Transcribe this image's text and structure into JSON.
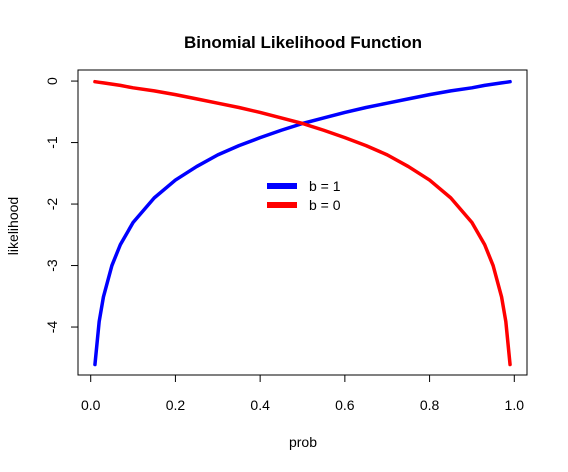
{
  "chart_data": {
    "type": "line",
    "title": "Binomial Likelihood Function",
    "xlabel": "prob",
    "ylabel": "likelihood",
    "xlim": [
      -0.03,
      1.03
    ],
    "ylim": [
      -4.78,
      0.18
    ],
    "x_ticks": [
      0,
      0.2,
      0.4,
      0.6,
      0.8,
      1
    ],
    "x_tick_labels": [
      "0.0",
      "0.2",
      "0.4",
      "0.6",
      "0.8",
      "1.0"
    ],
    "y_ticks": [
      0,
      -1,
      -2,
      -3,
      -4
    ],
    "y_tick_labels": [
      "0",
      "-1",
      "-2",
      "-3",
      "-4"
    ],
    "grid": false,
    "legend_position": "center",
    "x": [
      0.01,
      0.02,
      0.03,
      0.05,
      0.07,
      0.1,
      0.15,
      0.2,
      0.25,
      0.3,
      0.35,
      0.4,
      0.45,
      0.5,
      0.55,
      0.6,
      0.65,
      0.7,
      0.75,
      0.8,
      0.85,
      0.9,
      0.93,
      0.95,
      0.97,
      0.98,
      0.99
    ],
    "series": [
      {
        "name": "b = 1",
        "color": "#0000ff",
        "values": [
          -4.61,
          -3.91,
          -3.51,
          -3.0,
          -2.66,
          -2.3,
          -1.9,
          -1.61,
          -1.39,
          -1.2,
          -1.05,
          -0.92,
          -0.8,
          -0.69,
          -0.6,
          -0.51,
          -0.43,
          -0.36,
          -0.29,
          -0.22,
          -0.16,
          -0.11,
          -0.07,
          -0.05,
          -0.03,
          -0.02,
          -0.01
        ]
      },
      {
        "name": "b = 0",
        "color": "#ff0000",
        "values": [
          -0.01,
          -0.02,
          -0.03,
          -0.05,
          -0.07,
          -0.11,
          -0.16,
          -0.22,
          -0.29,
          -0.36,
          -0.43,
          -0.51,
          -0.6,
          -0.69,
          -0.8,
          -0.92,
          -1.05,
          -1.2,
          -1.39,
          -1.61,
          -1.9,
          -2.3,
          -2.66,
          -3.0,
          -3.51,
          -3.91,
          -4.61
        ]
      }
    ]
  }
}
